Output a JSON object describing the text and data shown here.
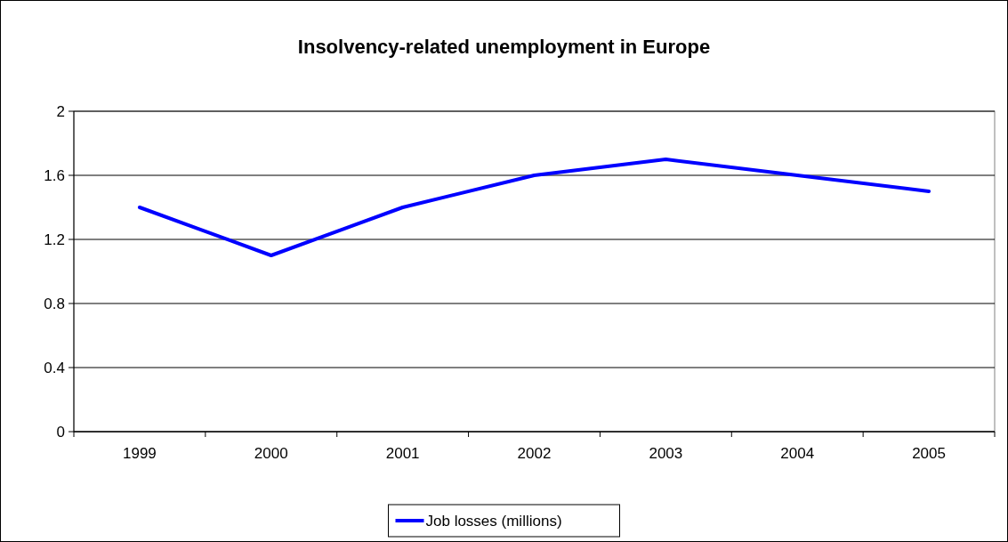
{
  "chart_data": {
    "type": "line",
    "title": "Insolvency-related unemployment in Europe",
    "categories": [
      "1999",
      "2000",
      "2001",
      "2002",
      "2003",
      "2004",
      "2005"
    ],
    "series": [
      {
        "name": "Job losses (millions)",
        "color": "#0000ff",
        "values": [
          1.4,
          1.1,
          1.4,
          1.6,
          1.7,
          1.6,
          1.5
        ]
      }
    ],
    "ylim": [
      0,
      2
    ],
    "yticks": [
      0,
      0.4,
      0.8,
      1.2,
      1.6,
      2
    ],
    "grid": "y",
    "legend": "bottom",
    "marker": "none",
    "line_style": "solid"
  }
}
